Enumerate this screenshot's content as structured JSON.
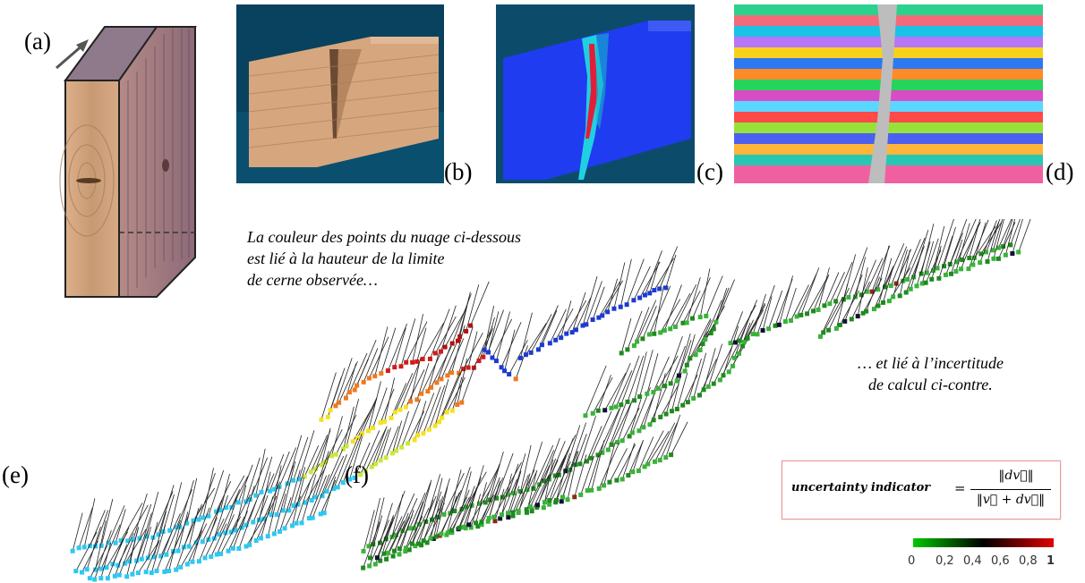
{
  "panels": {
    "a": "(a)",
    "b": "(b)",
    "c": "(c)",
    "d": "(d)",
    "e": "(e)",
    "f": "(f)"
  },
  "caption_top": [
    "La couleur des points du nuage ci-dessous",
    "est lié à la hauteur de la limite",
    "de cerne observée…"
  ],
  "caption_right": [
    "… et lié à l’incertitude",
    "de calcul ci-contre."
  ],
  "formula": {
    "lhs": "uncertainty indicator",
    "equals": "=",
    "numerator": "‖dv⃗‖",
    "denominator": "‖v⃗ + dv⃗‖"
  },
  "colorbar": {
    "ticks": [
      "0",
      "0,2",
      "0,4",
      "0,6",
      "0,8",
      "1"
    ],
    "colors": [
      "#00c800",
      "#000000",
      "#e00000"
    ]
  },
  "colors": {
    "wood_light": "#d9b08a",
    "wood_dark": "#9c6a45",
    "blue_field": "#1e3cf0",
    "mesh_gray": "#bdbdbd"
  }
}
